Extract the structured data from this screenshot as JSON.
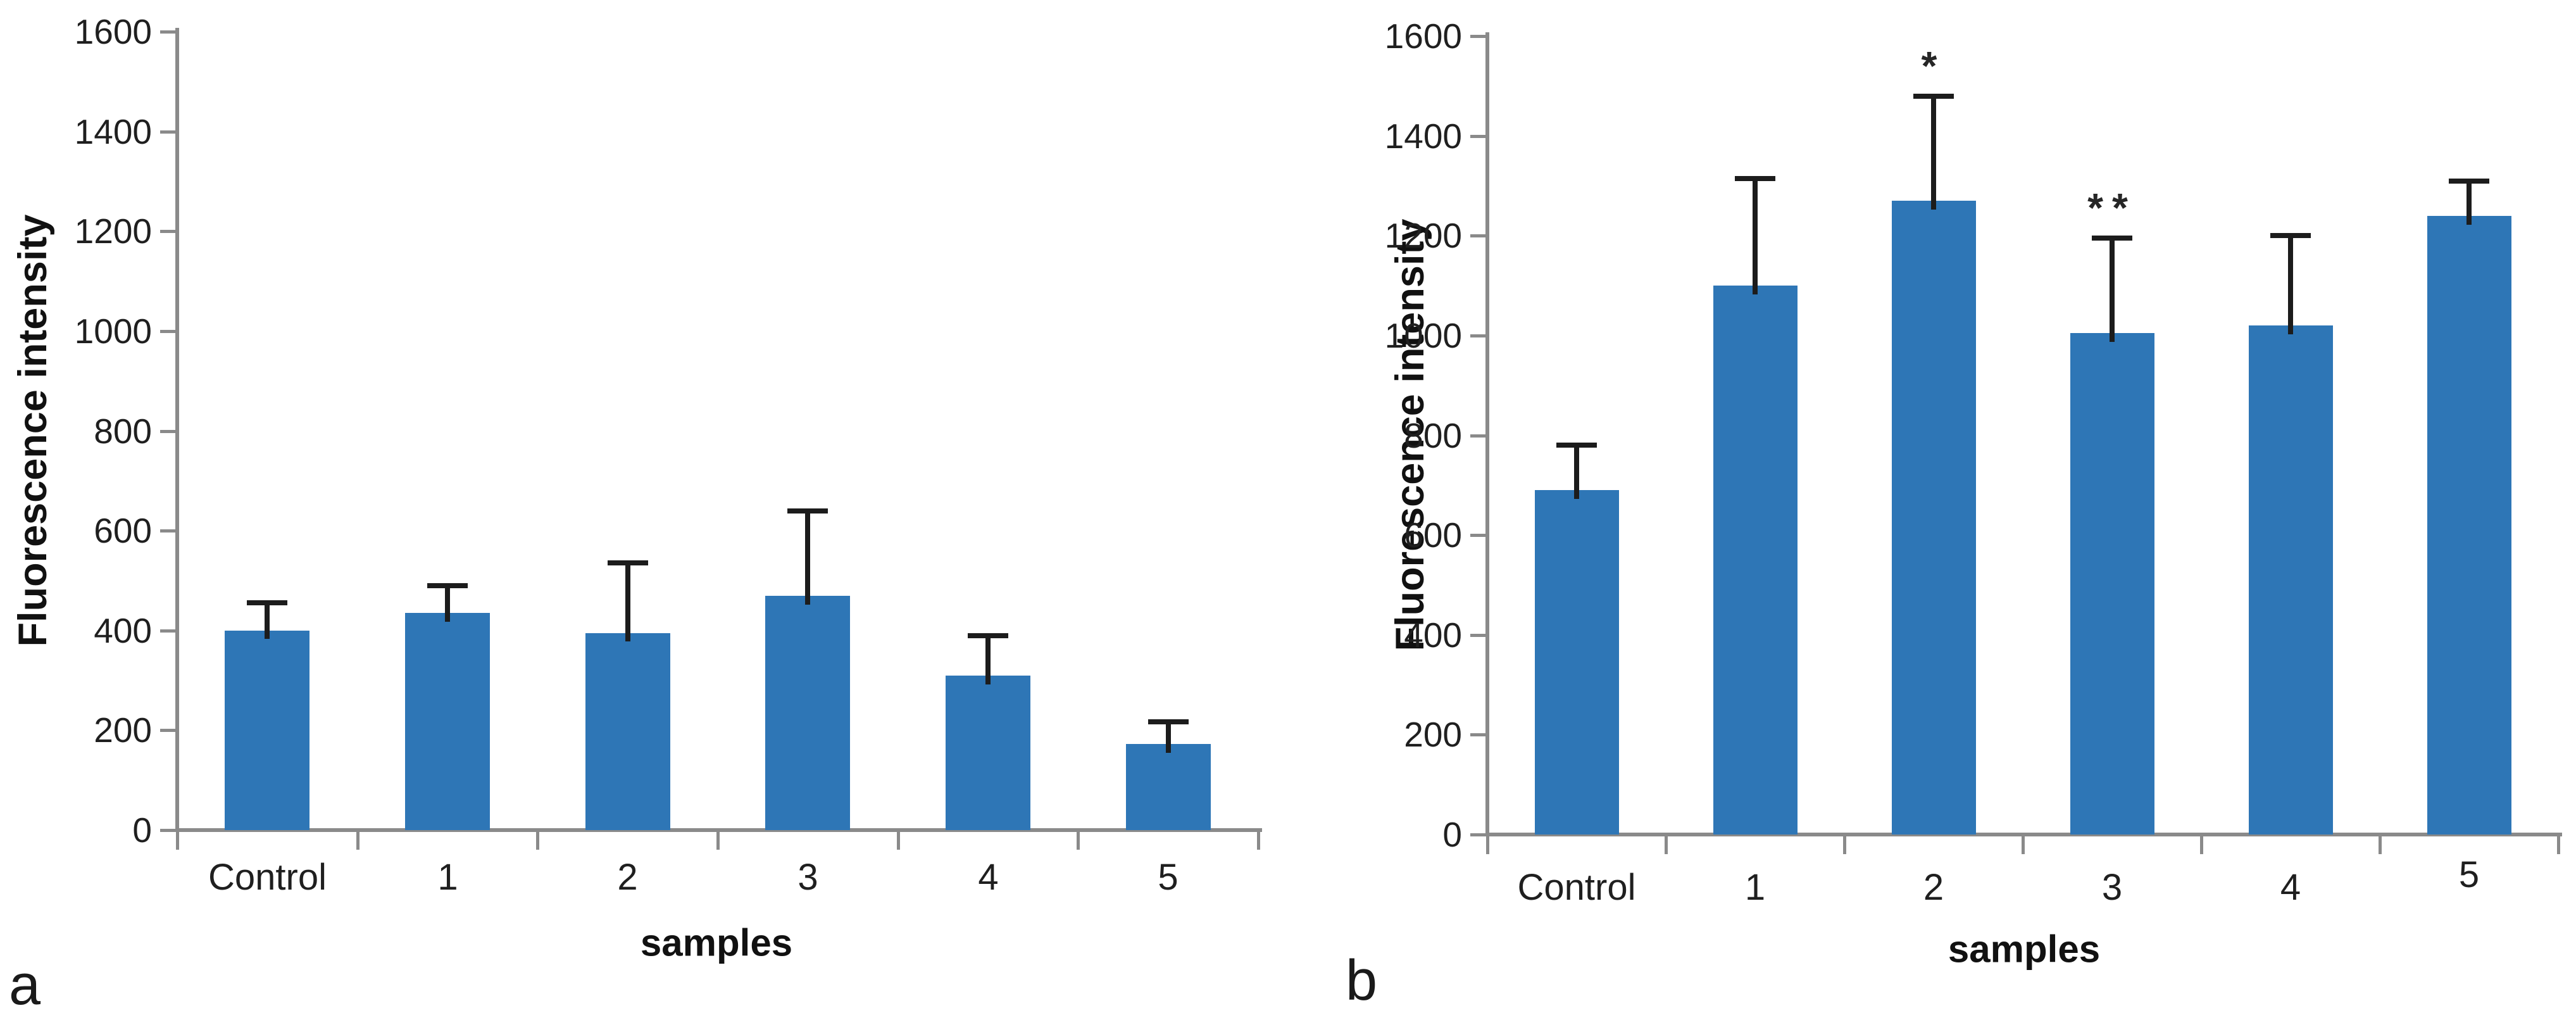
{
  "figure": {
    "background": "#ffffff",
    "bar_color": "#2e76b6",
    "axis_color": "#8a8a8a",
    "error_bar_color": "#1c1c1c"
  },
  "chart_data": [
    {
      "type": "bar",
      "panel_letter": "a",
      "title": "",
      "ylabel": "Fluorescence intensity",
      "xlabel": "samples",
      "categories": [
        "Control",
        "1",
        "2",
        "3",
        "4",
        "5"
      ],
      "values": [
        400,
        435,
        395,
        470,
        310,
        172
      ],
      "error_plus": [
        55,
        55,
        140,
        170,
        80,
        45
      ],
      "ylim": [
        0,
        1600
      ],
      "ytick_step": 200,
      "grid": "off",
      "legend": "none",
      "bar_color": "#2e76b6",
      "annotations": []
    },
    {
      "type": "bar",
      "panel_letter": "b",
      "title": "",
      "ylabel": "Fluorescence intensity",
      "xlabel": "samples",
      "categories": [
        "Control",
        "1",
        "2",
        "3",
        "4",
        "5"
      ],
      "values": [
        690,
        1100,
        1270,
        1005,
        1020,
        1240
      ],
      "error_plus": [
        90,
        215,
        210,
        190,
        180,
        70
      ],
      "ylim": [
        0,
        1600
      ],
      "ytick_step": 200,
      "grid": "off",
      "legend": "none",
      "bar_color": "#2e76b6",
      "annotations": [
        {
          "category": "2",
          "symbol": "*"
        },
        {
          "category": "3",
          "symbol": "**"
        }
      ]
    }
  ]
}
